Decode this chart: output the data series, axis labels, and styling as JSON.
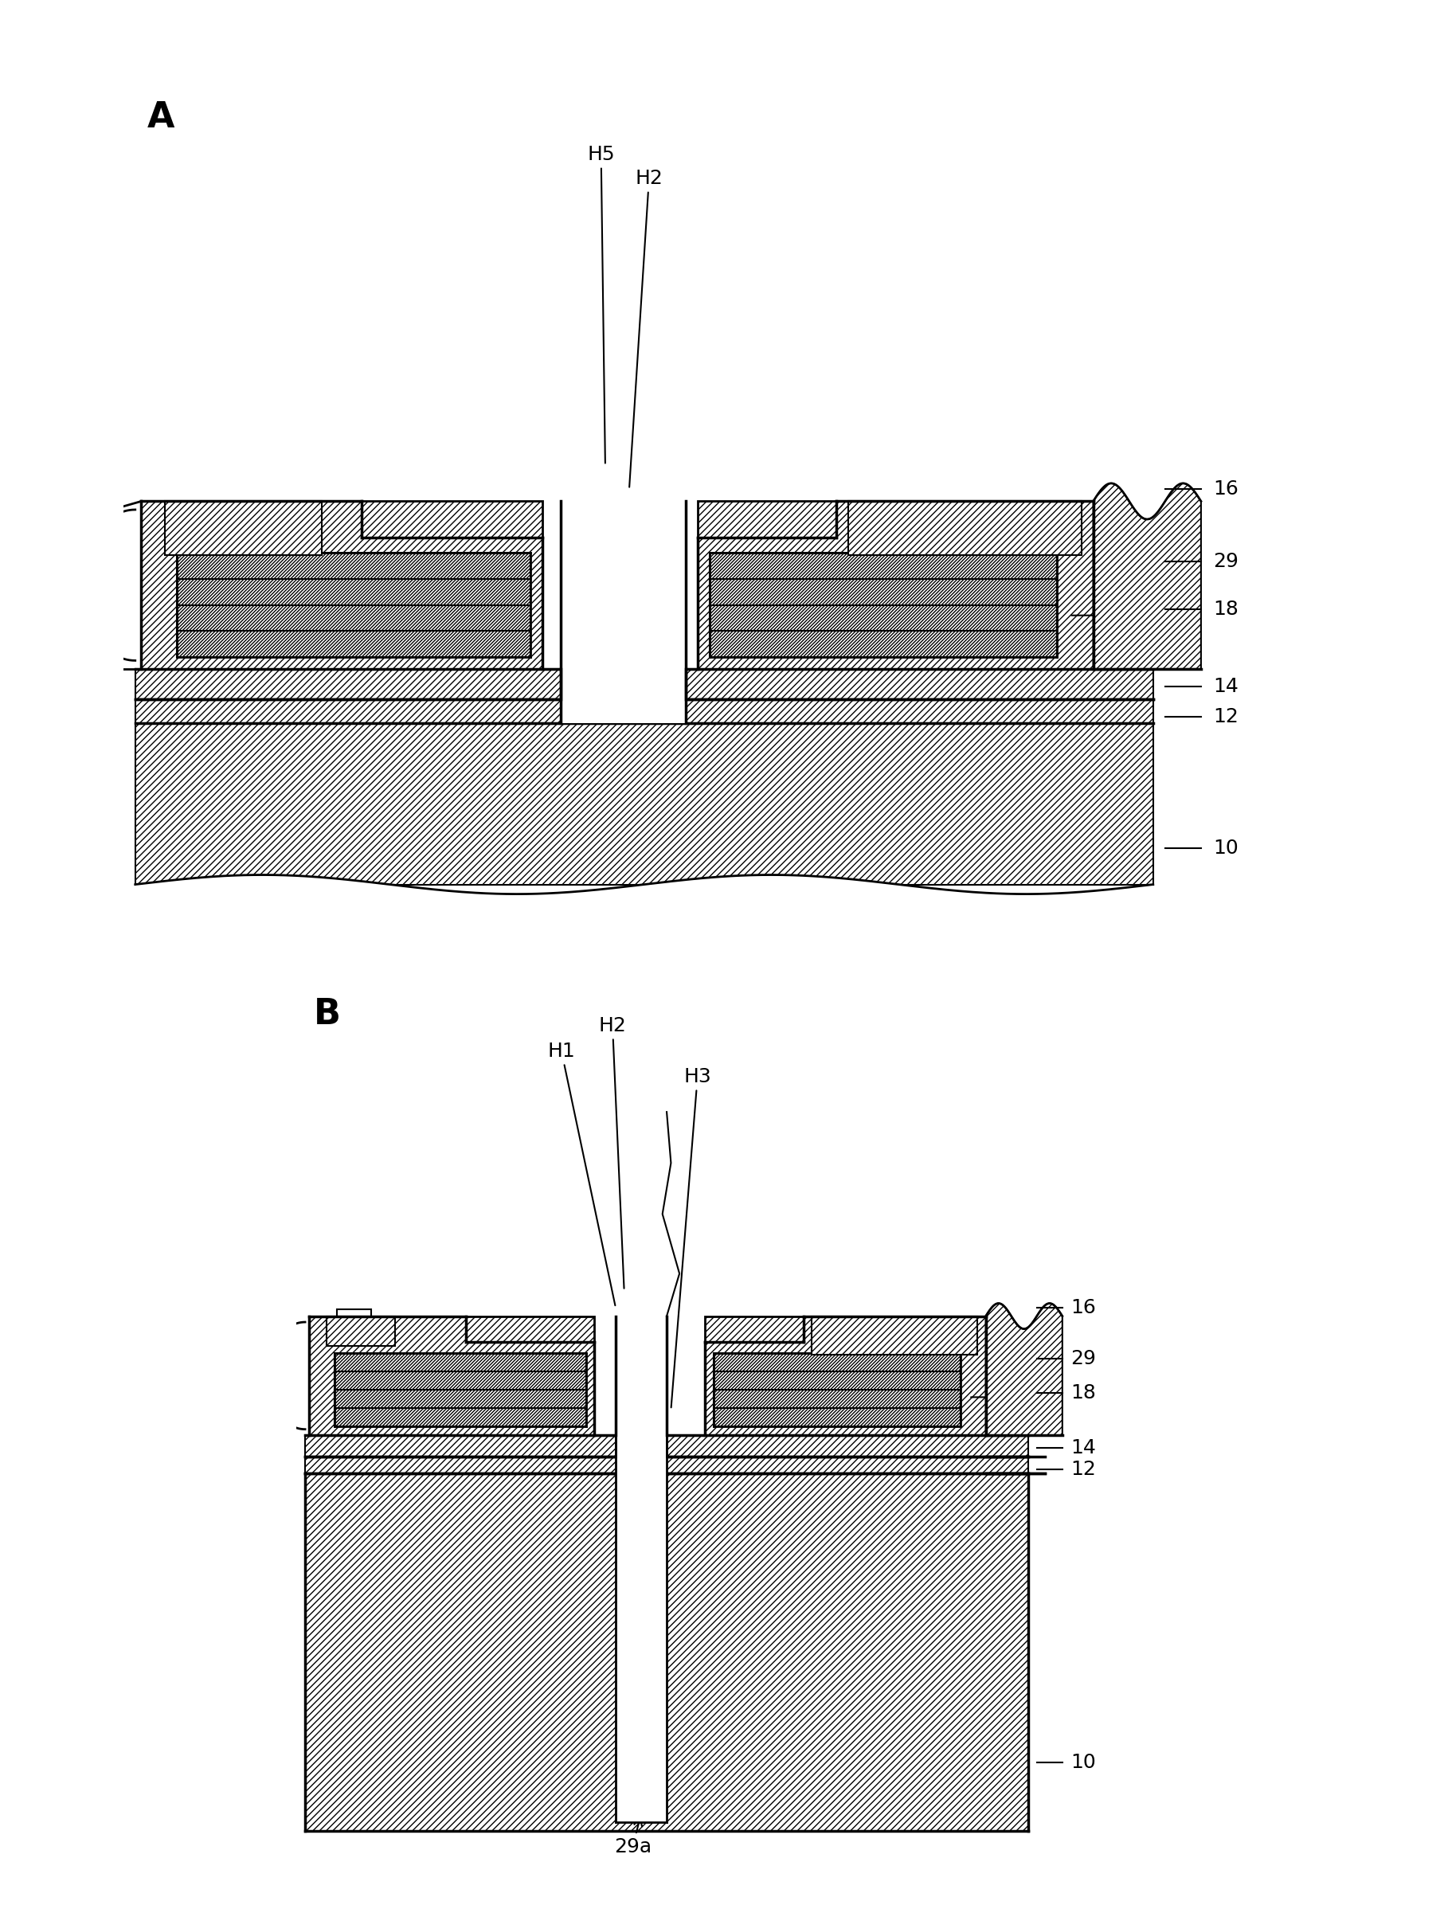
{
  "bg_color": "#ffffff",
  "fig_width": 18.13,
  "fig_height": 23.92,
  "label_A": "A",
  "label_B": "B",
  "labels_right_A": [
    "16",
    "29",
    "18",
    "14",
    "12",
    "10"
  ],
  "labels_right_B": [
    "16",
    "29",
    "18",
    "14",
    "12",
    "10"
  ],
  "label_bottom_B": "29a",
  "hatch_45": "////",
  "hatch_dense": "////////"
}
